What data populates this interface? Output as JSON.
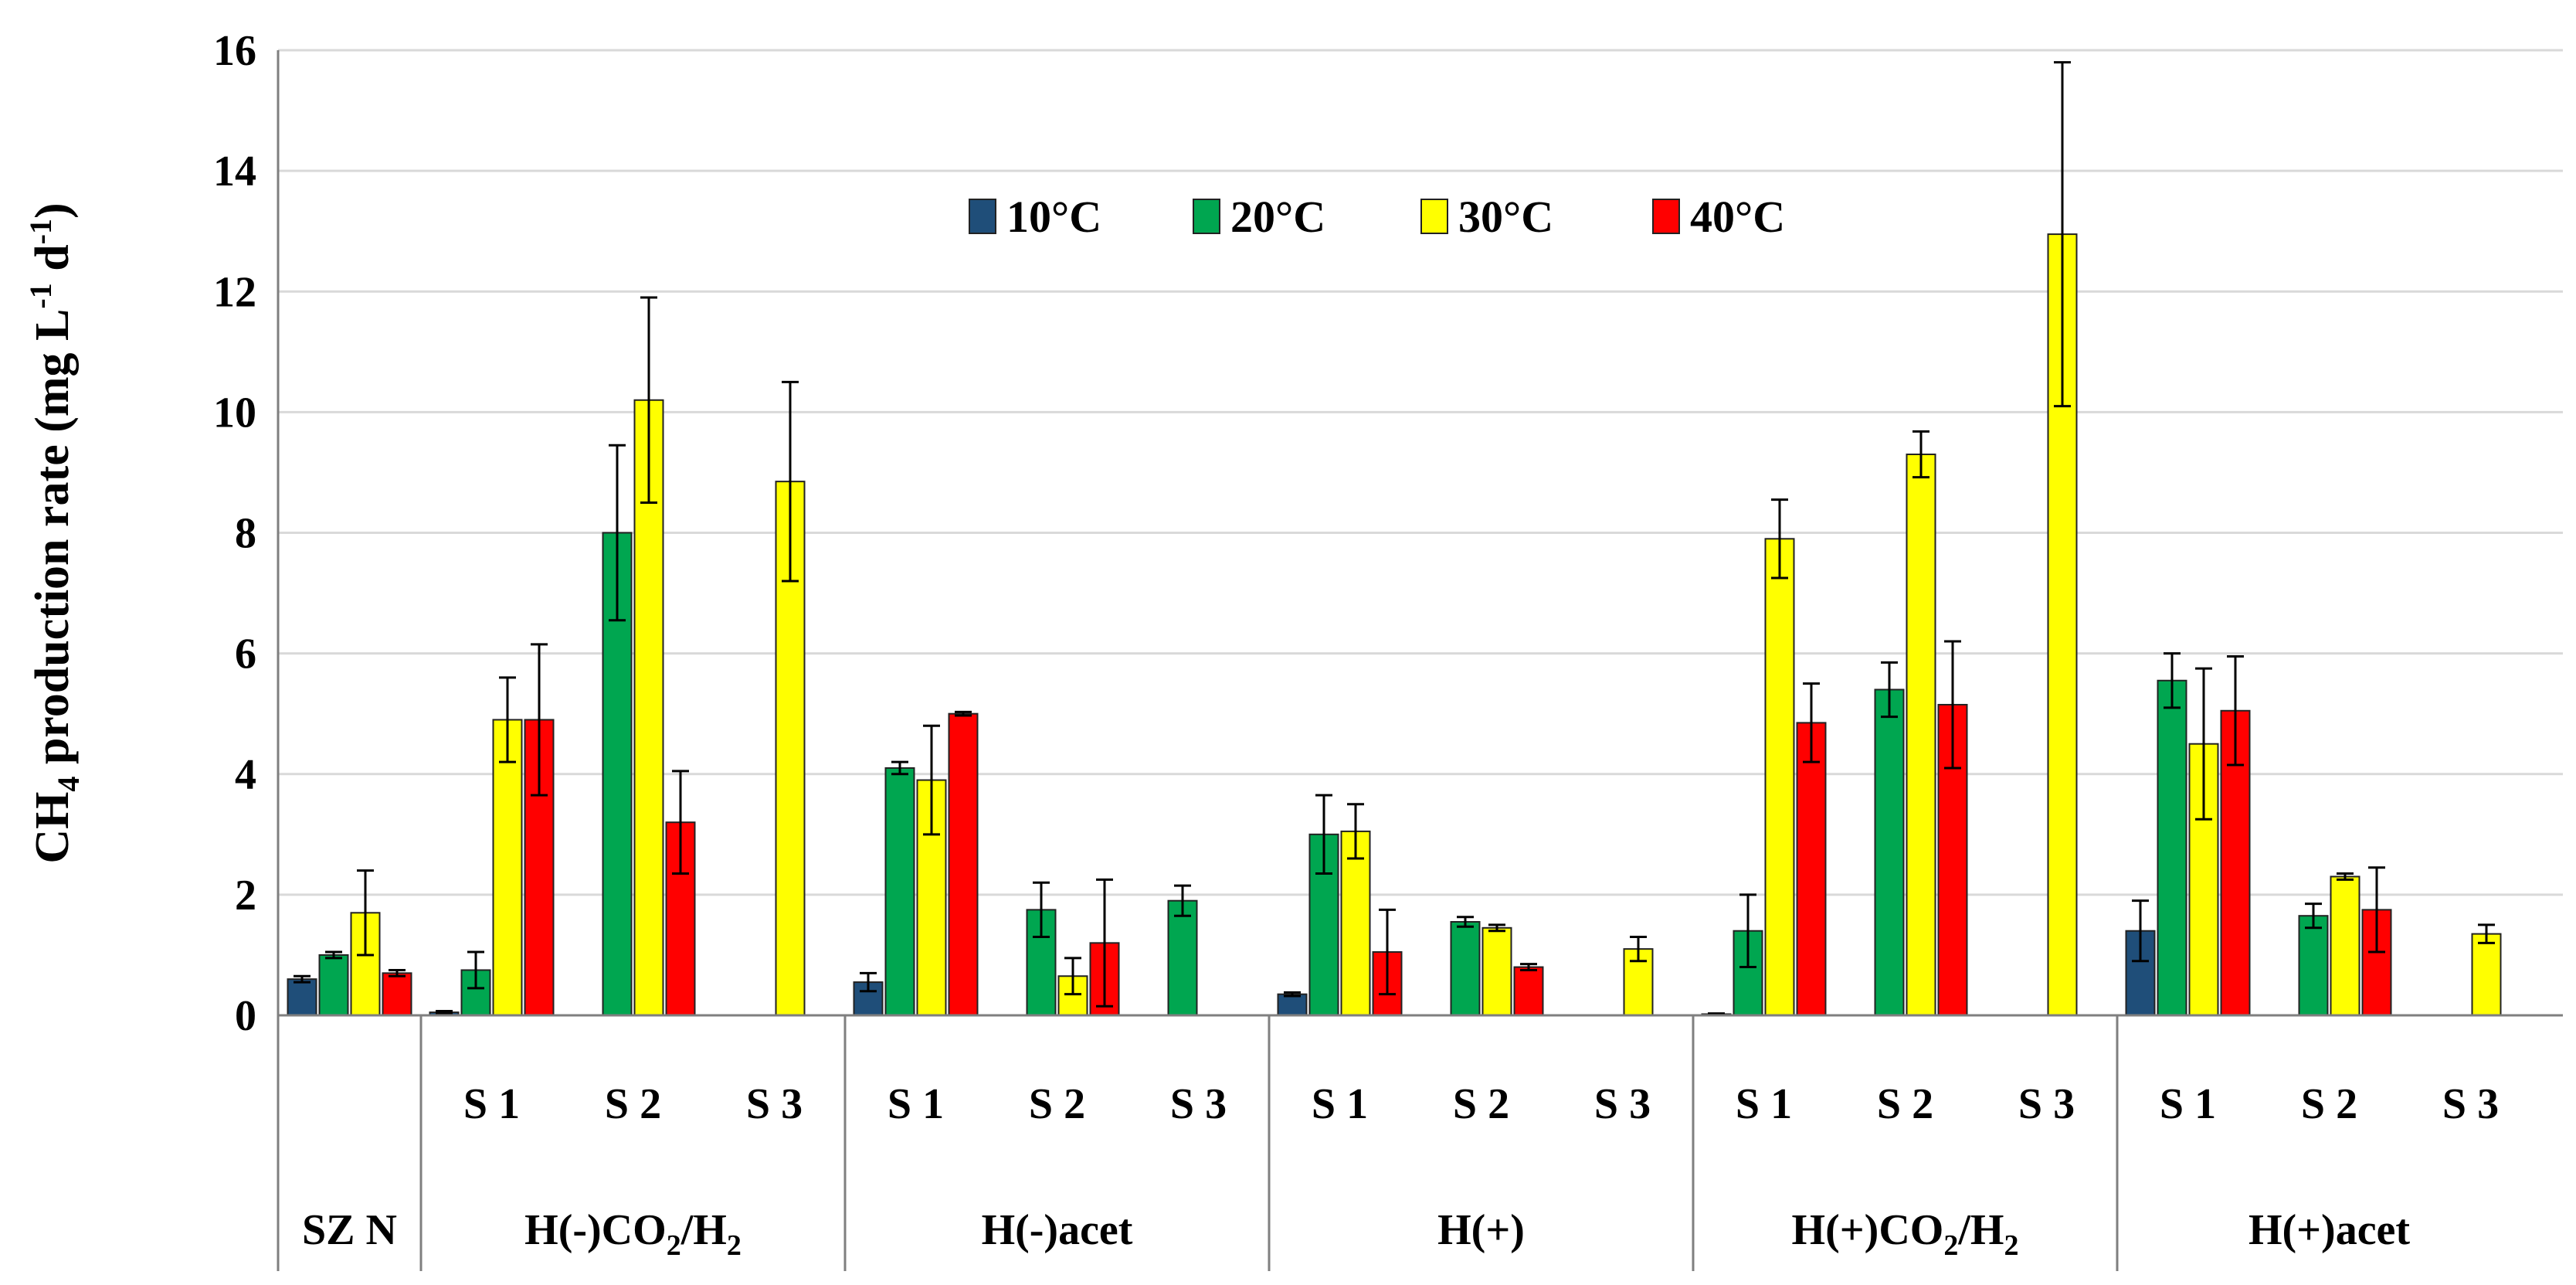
{
  "chart_data": {
    "type": "bar",
    "title": "",
    "ylabel": "CH4 production rate (mg L-1 d-1)",
    "ylabel_parts": {
      "a": "CH",
      "b": "4",
      "c": " production rate (mg L",
      "d": "-1",
      "e": " d",
      "f": "-1",
      "g": ")"
    },
    "ylim": [
      0,
      16
    ],
    "yticks": [
      "0",
      "2",
      "4",
      "6",
      "8",
      "10",
      "12",
      "14",
      "16"
    ],
    "grid": true,
    "legend_position": "top-center",
    "series": [
      {
        "name": "10°C",
        "color": "#1f4e79"
      },
      {
        "name": "20°C",
        "color": "#00a650"
      },
      {
        "name": "30°C",
        "color": "#ffff00"
      },
      {
        "name": "40°C",
        "color": "#ff0000"
      }
    ],
    "groups": [
      {
        "label": "SZ N",
        "subgroups": [
          {
            "label": "",
            "values": [
              0.6,
              1.0,
              1.7,
              0.7
            ],
            "errors": [
              0.05,
              0.05,
              0.7,
              0.05
            ]
          }
        ]
      },
      {
        "label": "H(-)CO2/H2",
        "label_parts": [
          "H(-)CO",
          "2",
          "/H",
          "2"
        ],
        "subgroups": [
          {
            "label": "S 1",
            "values": [
              0.05,
              0.75,
              4.9,
              4.9
            ],
            "errors": [
              0.02,
              0.3,
              0.7,
              1.25
            ]
          },
          {
            "label": "S 2",
            "values": [
              null,
              8.0,
              10.2,
              3.2
            ],
            "errors": [
              null,
              1.45,
              1.7,
              0.85
            ]
          },
          {
            "label": "S 3",
            "values": [
              null,
              null,
              8.85,
              null
            ],
            "errors": [
              null,
              null,
              1.65,
              null
            ]
          }
        ]
      },
      {
        "label": "H(-)acet",
        "subgroups": [
          {
            "label": "S 1",
            "values": [
              0.55,
              4.1,
              3.9,
              5.0
            ],
            "errors": [
              0.15,
              0.1,
              0.9,
              0.03
            ]
          },
          {
            "label": "S 2",
            "values": [
              null,
              1.75,
              0.65,
              1.2
            ],
            "errors": [
              null,
              0.45,
              0.3,
              1.05
            ]
          },
          {
            "label": "S 3",
            "values": [
              null,
              1.9,
              null,
              null
            ],
            "errors": [
              null,
              0.25,
              null,
              null
            ]
          }
        ]
      },
      {
        "label": "H(+)",
        "subgroups": [
          {
            "label": "S 1",
            "values": [
              0.35,
              3.0,
              3.05,
              1.05
            ],
            "errors": [
              0.03,
              0.65,
              0.45,
              0.7
            ]
          },
          {
            "label": "S 2",
            "values": [
              null,
              1.55,
              1.45,
              0.8
            ],
            "errors": [
              null,
              0.08,
              0.05,
              0.05
            ]
          },
          {
            "label": "S 3",
            "values": [
              null,
              null,
              1.1,
              null
            ],
            "errors": [
              null,
              null,
              0.2,
              null
            ]
          }
        ]
      },
      {
        "label": "H(+)CO2/H2",
        "label_parts": [
          "H(+)CO",
          "2",
          "/H",
          "2"
        ],
        "subgroups": [
          {
            "label": "S 1",
            "values": [
              0.02,
              1.4,
              7.9,
              4.85
            ],
            "errors": [
              0.01,
              0.6,
              0.65,
              0.65
            ]
          },
          {
            "label": "S 2",
            "values": [
              null,
              5.4,
              9.3,
              5.15
            ],
            "errors": [
              null,
              0.45,
              0.38,
              1.05
            ]
          },
          {
            "label": "S 3",
            "values": [
              null,
              null,
              12.95,
              null
            ],
            "errors": [
              null,
              null,
              2.85,
              null
            ]
          }
        ]
      },
      {
        "label": "H(+)acet",
        "subgroups": [
          {
            "label": "S 1",
            "values": [
              1.4,
              5.55,
              4.5,
              5.05
            ],
            "errors": [
              0.5,
              0.45,
              1.25,
              0.9
            ]
          },
          {
            "label": "S 2",
            "values": [
              null,
              1.65,
              2.3,
              1.75
            ],
            "errors": [
              null,
              0.2,
              0.05,
              0.7
            ]
          },
          {
            "label": "S 3",
            "values": [
              null,
              null,
              1.35,
              null
            ],
            "errors": [
              null,
              null,
              0.15,
              null
            ]
          }
        ]
      }
    ]
  }
}
